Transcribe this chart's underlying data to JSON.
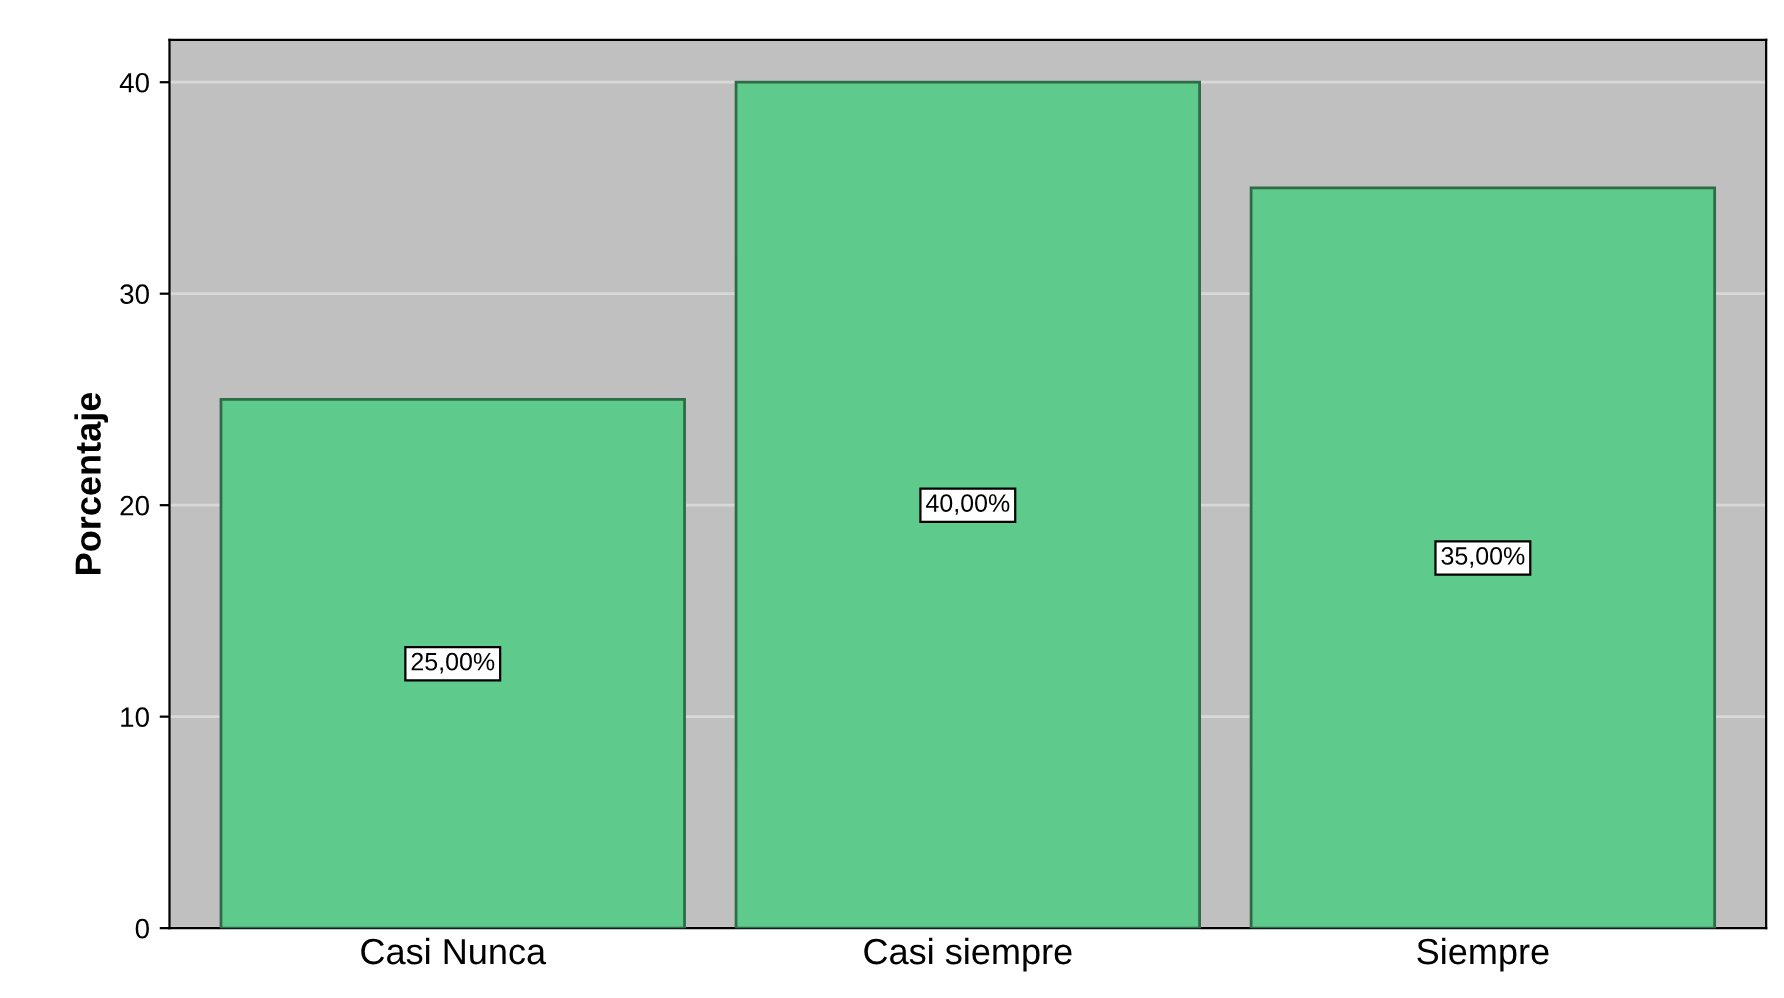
{
  "chart_data": {
    "type": "bar",
    "ylabel": "Porcentaje",
    "categories": [
      "Casi Nunca",
      "Casi siempre",
      "Siempre"
    ],
    "values": [
      25,
      40,
      35
    ],
    "value_labels": [
      "25,00%",
      "40,00%",
      "35,00%"
    ],
    "color": "#5ecb8c",
    "ylim": [
      0,
      42
    ],
    "yticks": [
      0,
      10,
      20,
      30,
      40
    ],
    "grid": "y"
  }
}
